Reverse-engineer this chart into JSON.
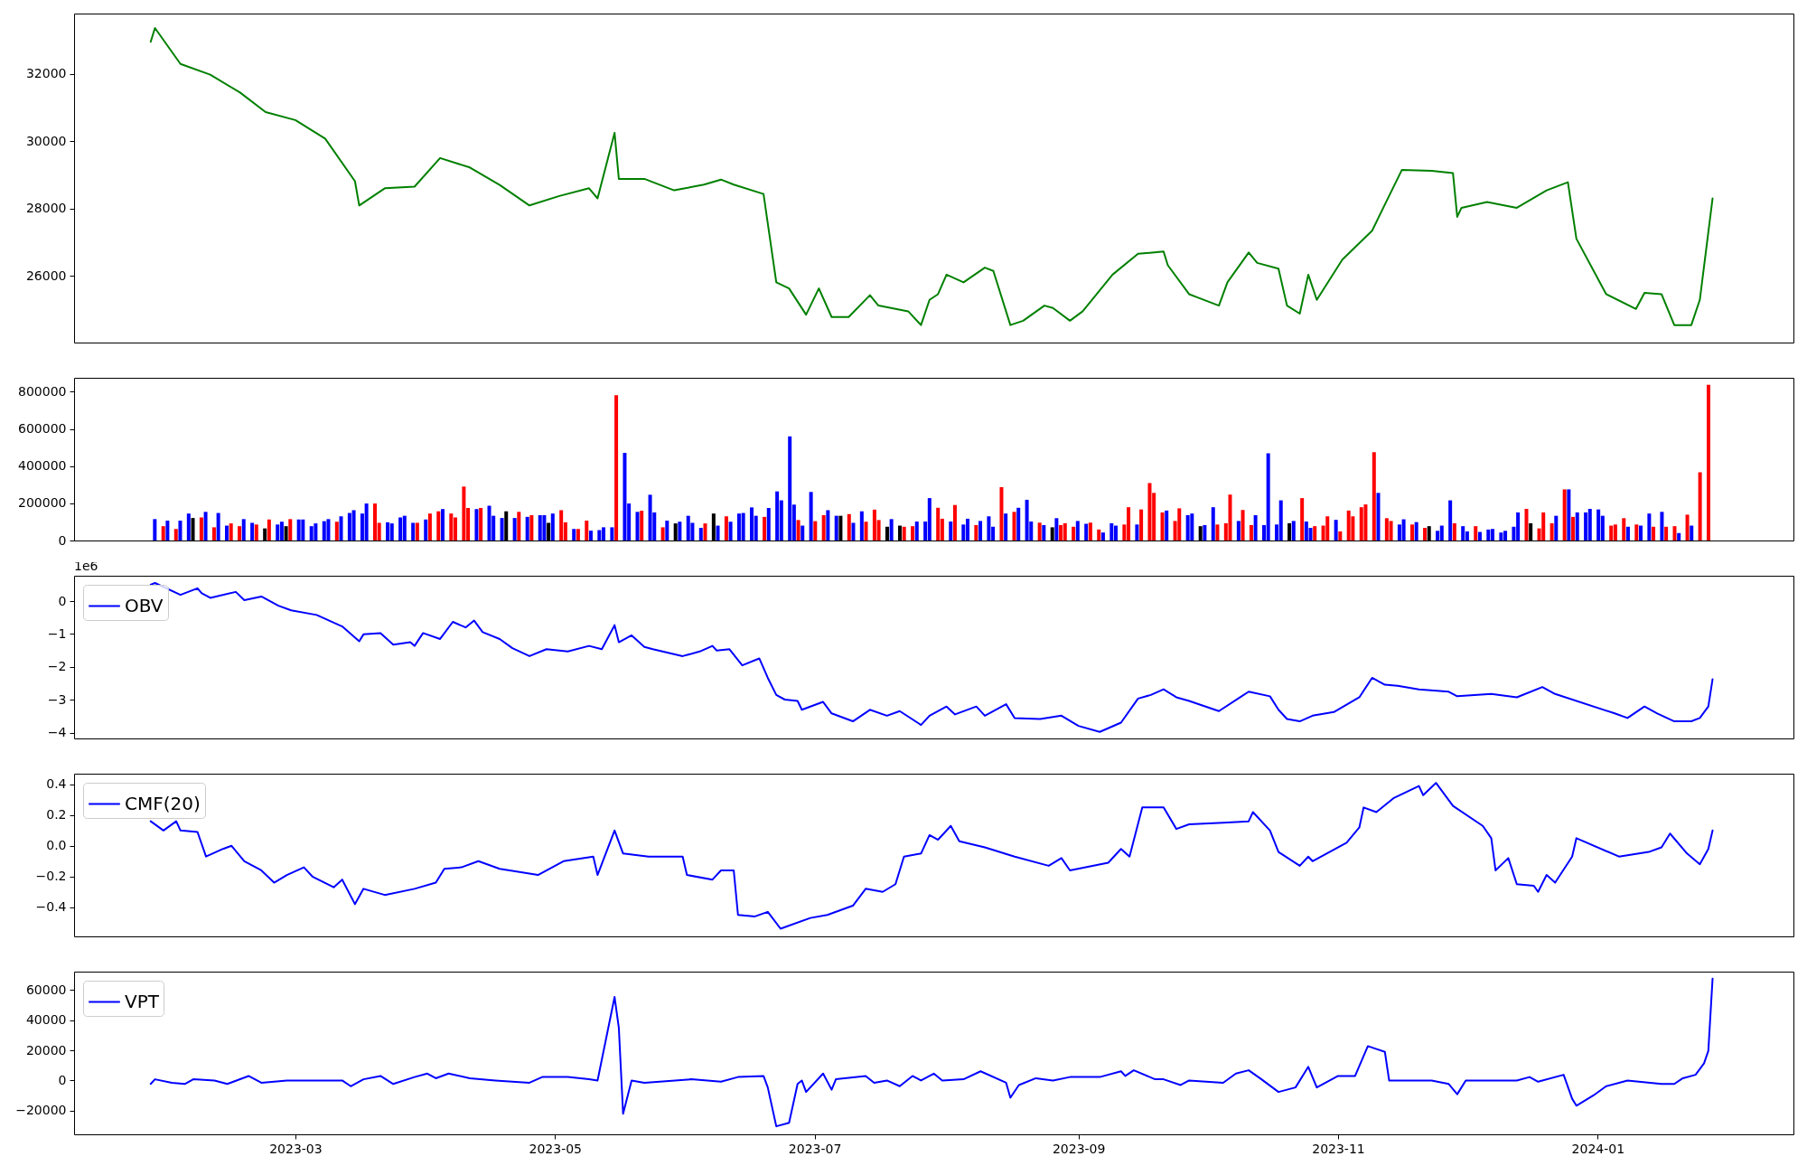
{
  "chart_data": [
    {
      "type": "line",
      "xlim": [
        "2023-01-08",
        "2024-02-16"
      ],
      "ylim": [
        24010,
        33800
      ],
      "yticks": [
        26000,
        28000,
        30000,
        32000
      ],
      "tick_labels": "y",
      "x": [
        "2023-01-26",
        "2023-01-27",
        "2023-02-02",
        "2023-02-09",
        "2023-02-16",
        "2023-02-22",
        "2023-03-01",
        "2023-03-08",
        "2023-03-15",
        "2023-03-16",
        "2023-03-22",
        "2023-03-29",
        "2023-04-04",
        "2023-04-11",
        "2023-04-18",
        "2023-04-25",
        "2023-05-02",
        "2023-05-09",
        "2023-05-11",
        "2023-05-15",
        "2023-05-16",
        "2023-05-22",
        "2023-05-29",
        "2023-06-05",
        "2023-06-09",
        "2023-06-12",
        "2023-06-19",
        "2023-06-22",
        "2023-06-25",
        "2023-06-29",
        "2023-07-02",
        "2023-07-05",
        "2023-07-09",
        "2023-07-14",
        "2023-07-16",
        "2023-07-23",
        "2023-07-26",
        "2023-07-28",
        "2023-07-30",
        "2023-08-01",
        "2023-08-05",
        "2023-08-10",
        "2023-08-12",
        "2023-08-16",
        "2023-08-19",
        "2023-08-24",
        "2023-08-26",
        "2023-08-30",
        "2023-09-02",
        "2023-09-09",
        "2023-09-15",
        "2023-09-21",
        "2023-09-22",
        "2023-09-27",
        "2023-09-29",
        "2023-10-04",
        "2023-10-06",
        "2023-10-11",
        "2023-10-13",
        "2023-10-18",
        "2023-10-20",
        "2023-10-23",
        "2023-10-25",
        "2023-10-27",
        "2023-11-02",
        "2023-11-09",
        "2023-11-16",
        "2023-11-23",
        "2023-11-28",
        "2023-11-29",
        "2023-11-30",
        "2023-12-06",
        "2023-12-13",
        "2023-12-20",
        "2023-12-25",
        "2023-12-27",
        "2024-01-03",
        "2024-01-10",
        "2024-01-12",
        "2024-01-16",
        "2024-01-19",
        "2024-01-23",
        "2024-01-25",
        "2024-01-28"
      ],
      "series": [
        {
          "color": "#008000",
          "values": [
            32960,
            33370,
            32300,
            31980,
            31450,
            30870,
            30630,
            30080,
            28810,
            28090,
            28600,
            28650,
            29500,
            29220,
            28700,
            28090,
            28370,
            28600,
            28300,
            30250,
            28880,
            28880,
            28540,
            28710,
            28860,
            28710,
            28430,
            25800,
            25620,
            24840,
            25620,
            24770,
            24770,
            25420,
            25110,
            24940,
            24530,
            25280,
            25450,
            26030,
            25800,
            26240,
            26140,
            24530,
            24660,
            25110,
            25040,
            24660,
            24940,
            26030,
            26650,
            26720,
            26310,
            25450,
            25350,
            25110,
            25800,
            26690,
            26380,
            26210,
            25110,
            24870,
            26030,
            25280,
            26480,
            27340,
            29150,
            29120,
            29050,
            27750,
            28020,
            28190,
            28020,
            28540,
            28780,
            27100,
            25450,
            25010,
            25490,
            25450,
            24530,
            24530,
            25280,
            28300
          ]
        }
      ]
    },
    {
      "type": "bar",
      "xlim": [
        "2023-01-08",
        "2024-02-16"
      ],
      "ylim": [
        0,
        875000
      ],
      "yticks": [
        0,
        200000,
        400000,
        600000,
        800000
      ],
      "tick_labels": "y",
      "x": [
        "2023-01-26",
        "2023-01-28",
        "2023-01-29",
        "2023-01-31",
        "2023-02-01",
        "2023-02-03",
        "2023-02-04",
        "2023-02-06",
        "2023-02-07",
        "2023-02-09",
        "2023-02-10",
        "2023-02-12",
        "2023-02-13",
        "2023-02-15",
        "2023-02-16",
        "2023-02-18",
        "2023-02-19",
        "2023-02-21",
        "2023-02-22",
        "2023-02-24",
        "2023-02-25",
        "2023-02-26",
        "2023-02-27",
        "2023-03-01",
        "2023-03-02",
        "2023-03-04",
        "2023-03-05",
        "2023-03-07",
        "2023-03-08",
        "2023-03-10",
        "2023-03-11",
        "2023-03-13",
        "2023-03-14",
        "2023-03-16",
        "2023-03-17",
        "2023-03-19",
        "2023-03-20",
        "2023-03-22",
        "2023-03-23",
        "2023-03-25",
        "2023-03-26",
        "2023-03-28",
        "2023-03-29",
        "2023-03-31",
        "2023-04-01",
        "2023-04-03",
        "2023-04-04",
        "2023-04-06",
        "2023-04-07",
        "2023-04-09",
        "2023-04-10",
        "2023-04-12",
        "2023-04-13",
        "2023-04-15",
        "2023-04-16",
        "2023-04-18",
        "2023-04-19",
        "2023-04-21",
        "2023-04-22",
        "2023-04-24",
        "2023-04-25",
        "2023-04-27",
        "2023-04-28",
        "2023-04-29",
        "2023-04-30",
        "2023-05-02",
        "2023-05-03",
        "2023-05-05",
        "2023-05-06",
        "2023-05-08",
        "2023-05-09",
        "2023-05-11",
        "2023-05-12",
        "2023-05-14",
        "2023-05-15",
        "2023-05-17",
        "2023-05-18",
        "2023-05-20",
        "2023-05-21",
        "2023-05-23",
        "2023-05-24",
        "2023-05-26",
        "2023-05-27",
        "2023-05-29",
        "2023-05-30",
        "2023-06-01",
        "2023-06-02",
        "2023-06-04",
        "2023-06-05",
        "2023-06-07",
        "2023-06-08",
        "2023-06-10",
        "2023-06-11",
        "2023-06-13",
        "2023-06-14",
        "2023-06-16",
        "2023-06-17",
        "2023-06-19",
        "2023-06-20",
        "2023-06-22",
        "2023-06-23",
        "2023-06-25",
        "2023-06-26",
        "2023-06-27",
        "2023-06-28",
        "2023-06-30",
        "2023-07-01",
        "2023-07-03",
        "2023-07-04",
        "2023-07-06",
        "2023-07-07",
        "2023-07-09",
        "2023-07-10",
        "2023-07-12",
        "2023-07-13",
        "2023-07-15",
        "2023-07-16",
        "2023-07-18",
        "2023-07-19",
        "2023-07-21",
        "2023-07-22",
        "2023-07-24",
        "2023-07-25",
        "2023-07-27",
        "2023-07-28",
        "2023-07-30",
        "2023-07-31",
        "2023-08-02",
        "2023-08-03",
        "2023-08-05",
        "2023-08-06",
        "2023-08-08",
        "2023-08-09",
        "2023-08-11",
        "2023-08-12",
        "2023-08-14",
        "2023-08-15",
        "2023-08-17",
        "2023-08-18",
        "2023-08-20",
        "2023-08-21",
        "2023-08-23",
        "2023-08-24",
        "2023-08-26",
        "2023-08-27",
        "2023-08-28",
        "2023-08-29",
        "2023-08-31",
        "2023-09-01",
        "2023-09-03",
        "2023-09-04",
        "2023-09-06",
        "2023-09-07",
        "2023-09-09",
        "2023-09-10",
        "2023-09-12",
        "2023-09-13",
        "2023-09-15",
        "2023-09-16",
        "2023-09-18",
        "2023-09-19",
        "2023-09-21",
        "2023-09-22",
        "2023-09-24",
        "2023-09-25",
        "2023-09-27",
        "2023-09-28",
        "2023-09-30",
        "2023-10-01",
        "2023-10-03",
        "2023-10-04",
        "2023-10-06",
        "2023-10-07",
        "2023-10-09",
        "2023-10-10",
        "2023-10-12",
        "2023-10-13",
        "2023-10-15",
        "2023-10-16",
        "2023-10-18",
        "2023-10-19",
        "2023-10-21",
        "2023-10-22",
        "2023-10-24",
        "2023-10-25",
        "2023-10-26",
        "2023-10-27",
        "2023-10-29",
        "2023-10-30",
        "2023-11-01",
        "2023-11-02",
        "2023-11-04",
        "2023-11-05",
        "2023-11-07",
        "2023-11-08",
        "2023-11-10",
        "2023-11-11",
        "2023-11-13",
        "2023-11-14",
        "2023-11-16",
        "2023-11-17",
        "2023-11-19",
        "2023-11-20",
        "2023-11-22",
        "2023-11-23",
        "2023-11-25",
        "2023-11-26",
        "2023-11-28",
        "2023-11-29",
        "2023-12-01",
        "2023-12-02",
        "2023-12-04",
        "2023-12-05",
        "2023-12-07",
        "2023-12-08",
        "2023-12-10",
        "2023-12-11",
        "2023-12-13",
        "2023-12-14",
        "2023-12-16",
        "2023-12-17",
        "2023-12-19",
        "2023-12-20",
        "2023-12-22",
        "2023-12-23",
        "2023-12-25",
        "2023-12-26",
        "2023-12-27",
        "2023-12-28",
        "2023-12-30",
        "2023-12-31",
        "2024-01-02",
        "2024-01-03",
        "2024-01-05",
        "2024-01-06",
        "2024-01-08",
        "2024-01-09",
        "2024-01-11",
        "2024-01-12",
        "2024-01-14",
        "2024-01-15",
        "2024-01-17",
        "2024-01-18",
        "2024-01-20",
        "2024-01-21",
        "2024-01-23",
        "2024-01-24",
        "2024-01-26",
        "2024-01-28"
      ],
      "values": [
        115000,
        77000,
        107000,
        62000,
        107000,
        145000,
        121000,
        124000,
        154000,
        71000,
        148000,
        80000,
        92000,
        77000,
        115000,
        95000,
        86000,
        65000,
        113000,
        86000,
        101000,
        77000,
        115000,
        113000,
        113000,
        77000,
        92000,
        104000,
        115000,
        101000,
        130000,
        148000,
        163000,
        145000,
        199000,
        199000,
        95000,
        98000,
        92000,
        124000,
        133000,
        95000,
        95000,
        113000,
        145000,
        157000,
        169000,
        145000,
        124000,
        290000,
        175000,
        169000,
        175000,
        187000,
        133000,
        121000,
        157000,
        121000,
        154000,
        127000,
        136000,
        136000,
        136000,
        95000,
        145000,
        163000,
        98000,
        62000,
        62000,
        107000,
        53000,
        56000,
        71000,
        71000,
        782000,
        471000,
        199000,
        154000,
        160000,
        246000,
        151000,
        71000,
        107000,
        92000,
        101000,
        133000,
        95000,
        68000,
        92000,
        145000,
        80000,
        130000,
        101000,
        145000,
        148000,
        178000,
        133000,
        127000,
        175000,
        264000,
        216000,
        560000,
        193000,
        110000,
        80000,
        261000,
        104000,
        136000,
        163000,
        133000,
        133000,
        142000,
        95000,
        157000,
        101000,
        166000,
        110000,
        74000,
        115000,
        80000,
        74000,
        77000,
        102000,
        102000,
        228000,
        176000,
        117000,
        102000,
        191000,
        86000,
        117000,
        83000,
        105000,
        130000,
        74000,
        287000,
        145000,
        154000,
        176000,
        219000,
        102000,
        96000,
        83000,
        71000,
        120000,
        83000,
        93000,
        74000,
        105000,
        90000,
        96000,
        59000,
        43000,
        93000,
        80000,
        86000,
        179000,
        86000,
        167000,
        309000,
        256000,
        151000,
        161000,
        105000,
        173000,
        136000,
        145000,
        77000,
        83000,
        179000,
        86000,
        93000,
        247000,
        105000,
        164000,
        83000,
        136000,
        83000,
        469000,
        86000,
        216000,
        93000,
        105000,
        228000,
        102000,
        68000,
        77000,
        80000,
        130000,
        111000,
        49000,
        161000,
        130000,
        179000,
        194000,
        475000,
        256000,
        120000,
        105000,
        86000,
        114000,
        86000,
        99000,
        68000,
        77000,
        52000,
        80000,
        216000,
        93000,
        77000,
        49000,
        77000,
        46000,
        59000,
        62000,
        43000,
        52000,
        74000,
        151000,
        170000,
        93000,
        65000,
        151000,
        93000,
        133000,
        275000,
        275000,
        127000,
        151000,
        151000,
        170000,
        167000,
        133000,
        80000,
        86000,
        120000,
        74000,
        86000,
        80000,
        145000,
        74000,
        154000,
        74000,
        77000,
        40000,
        139000,
        80000,
        367000,
        837000
      ],
      "colors": [
        "#0000ff",
        "#ff0000",
        "#0000ff",
        "#ff0000",
        "#0000ff",
        "#0000ff",
        "#000000",
        "#ff0000",
        "#0000ff",
        "#ff0000",
        "#0000ff",
        "#0000ff",
        "#ff0000",
        "#ff0000",
        "#0000ff",
        "#0000ff",
        "#ff0000",
        "#000000",
        "#ff0000",
        "#0000ff",
        "#0000ff",
        "#000000",
        "#ff0000",
        "#0000ff",
        "#0000ff",
        "#0000ff",
        "#0000ff",
        "#0000ff",
        "#0000ff",
        "#ff0000",
        "#0000ff",
        "#0000ff",
        "#0000ff",
        "#0000ff",
        "#0000ff",
        "#ff0000",
        "#ff0000",
        "#0000ff",
        "#0000ff",
        "#0000ff",
        "#0000ff",
        "#0000ff",
        "#ff0000",
        "#0000ff",
        "#ff0000",
        "#ff0000",
        "#0000ff",
        "#ff0000",
        "#ff0000",
        "#ff0000",
        "#ff0000",
        "#0000ff",
        "#ff0000",
        "#0000ff",
        "#0000ff",
        "#0000ff",
        "#000000",
        "#0000ff",
        "#ff0000",
        "#0000ff",
        "#ff0000",
        "#0000ff",
        "#0000ff",
        "#000000",
        "#0000ff",
        "#ff0000",
        "#ff0000",
        "#0000ff",
        "#ff0000",
        "#ff0000",
        "#0000ff",
        "#0000ff",
        "#0000ff",
        "#0000ff",
        "#ff0000",
        "#0000ff",
        "#0000ff",
        "#0000ff",
        "#ff0000",
        "#0000ff",
        "#0000ff",
        "#ff0000",
        "#0000ff",
        "#000000",
        "#0000ff",
        "#0000ff",
        "#0000ff",
        "#0000ff",
        "#ff0000",
        "#000000",
        "#0000ff",
        "#ff0000",
        "#0000ff",
        "#0000ff",
        "#0000ff",
        "#0000ff",
        "#0000ff",
        "#ff0000",
        "#0000ff",
        "#0000ff",
        "#0000ff",
        "#0000ff",
        "#0000ff",
        "#ff0000",
        "#0000ff",
        "#0000ff",
        "#ff0000",
        "#ff0000",
        "#0000ff",
        "#0000ff",
        "#000000",
        "#ff0000",
        "#0000ff",
        "#0000ff",
        "#ff0000",
        "#ff0000",
        "#ff0000",
        "#000000",
        "#0000ff",
        "#000000",
        "#ff0000",
        "#ff0000",
        "#0000ff",
        "#0000ff",
        "#0000ff",
        "#ff0000",
        "#ff0000",
        "#0000ff",
        "#ff0000",
        "#0000ff",
        "#0000ff",
        "#ff0000",
        "#0000ff",
        "#0000ff",
        "#0000ff",
        "#ff0000",
        "#0000ff",
        "#ff0000",
        "#0000ff",
        "#0000ff",
        "#0000ff",
        "#ff0000",
        "#0000ff",
        "#000000",
        "#0000ff",
        "#ff0000",
        "#ff0000",
        "#ff0000",
        "#0000ff",
        "#0000ff",
        "#ff0000",
        "#ff0000",
        "#0000ff",
        "#0000ff",
        "#0000ff",
        "#ff0000",
        "#ff0000",
        "#0000ff",
        "#ff0000",
        "#ff0000",
        "#ff0000",
        "#ff0000",
        "#0000ff",
        "#ff0000",
        "#ff0000",
        "#0000ff",
        "#0000ff",
        "#000000",
        "#0000ff",
        "#0000ff",
        "#ff0000",
        "#ff0000",
        "#ff0000",
        "#0000ff",
        "#ff0000",
        "#ff0000",
        "#0000ff",
        "#0000ff",
        "#0000ff",
        "#0000ff",
        "#0000ff",
        "#000000",
        "#0000ff",
        "#ff0000",
        "#0000ff",
        "#0000ff",
        "#ff0000",
        "#ff0000",
        "#ff0000",
        "#0000ff",
        "#ff0000",
        "#ff0000",
        "#ff0000",
        "#ff0000",
        "#ff0000",
        "#ff0000",
        "#0000ff",
        "#ff0000",
        "#ff0000",
        "#0000ff",
        "#0000ff",
        "#ff0000",
        "#0000ff",
        "#ff0000",
        "#000000",
        "#0000ff",
        "#0000ff",
        "#0000ff",
        "#ff0000",
        "#0000ff",
        "#0000ff",
        "#ff0000",
        "#0000ff",
        "#0000ff",
        "#0000ff",
        "#0000ff",
        "#0000ff",
        "#0000ff",
        "#0000ff",
        "#ff0000",
        "#000000",
        "#ff0000",
        "#ff0000",
        "#ff0000",
        "#0000ff",
        "#ff0000",
        "#0000ff",
        "#ff0000",
        "#0000ff",
        "#0000ff",
        "#0000ff",
        "#0000ff",
        "#0000ff",
        "#ff0000",
        "#ff0000",
        "#ff0000",
        "#0000ff",
        "#ff0000",
        "#0000ff",
        "#0000ff",
        "#ff0000",
        "#0000ff",
        "#ff0000",
        "#ff0000",
        "#0000ff",
        "#ff0000",
        "#0000ff",
        "#ff0000",
        "#ff0000"
      ]
    },
    {
      "type": "line",
      "xlim": [
        "2023-01-08",
        "2024-02-16"
      ],
      "ylim": [
        -4.17,
        0.77
      ],
      "yticks": [
        {
          "value": -4,
          "label": "−4"
        },
        {
          "value": -3,
          "label": "−3"
        },
        {
          "value": -2,
          "label": "−2"
        },
        {
          "value": -1,
          "label": "−1"
        },
        0
      ],
      "tick_labels": "y",
      "legend": "top left",
      "annotations": [
        "1e6"
      ],
      "x": [
        "2023-01-26",
        "2023-01-27",
        "2023-02-02",
        "2023-02-06",
        "2023-02-07",
        "2023-02-09",
        "2023-02-15",
        "2023-02-17",
        "2023-02-21",
        "2023-02-25",
        "2023-02-28",
        "2023-03-06",
        "2023-03-12",
        "2023-03-16",
        "2023-03-17",
        "2023-03-21",
        "2023-03-24",
        "2023-03-28",
        "2023-03-29",
        "2023-03-31",
        "2023-04-04",
        "2023-04-07",
        "2023-04-10",
        "2023-04-12",
        "2023-04-14",
        "2023-04-18",
        "2023-04-21",
        "2023-04-25",
        "2023-04-29",
        "2023-05-04",
        "2023-05-09",
        "2023-05-12",
        "2023-05-15",
        "2023-05-16",
        "2023-05-19",
        "2023-05-22",
        "2023-05-24",
        "2023-05-31",
        "2023-06-04",
        "2023-06-07",
        "2023-06-08",
        "2023-06-11",
        "2023-06-14",
        "2023-06-18",
        "2023-06-20",
        "2023-06-22",
        "2023-06-24",
        "2023-06-27",
        "2023-06-28",
        "2023-07-03",
        "2023-07-05",
        "2023-07-10",
        "2023-07-14",
        "2023-07-18",
        "2023-07-21",
        "2023-07-26",
        "2023-07-28",
        "2023-08-01",
        "2023-08-03",
        "2023-08-08",
        "2023-08-10",
        "2023-08-15",
        "2023-08-17",
        "2023-08-23",
        "2023-08-28",
        "2023-09-01",
        "2023-09-06",
        "2023-09-11",
        "2023-09-15",
        "2023-09-18",
        "2023-09-21",
        "2023-09-24",
        "2023-09-27",
        "2023-10-04",
        "2023-10-09",
        "2023-10-11",
        "2023-10-16",
        "2023-10-18",
        "2023-10-20",
        "2023-10-23",
        "2023-10-26",
        "2023-10-31",
        "2023-11-06",
        "2023-11-09",
        "2023-11-12",
        "2023-11-15",
        "2023-11-20",
        "2023-11-27",
        "2023-11-29",
        "2023-12-07",
        "2023-12-13",
        "2023-12-19",
        "2023-12-22",
        "2024-01-05",
        "2024-01-08",
        "2024-01-12",
        "2024-01-15",
        "2024-01-19",
        "2024-01-23",
        "2024-01-25",
        "2024-01-27",
        "2024-01-28"
      ],
      "series": [
        {
          "name": "OBV",
          "color": "#0000ff",
          "values": [
            0.5,
            0.55,
            0.19,
            0.39,
            0.24,
            0.1,
            0.28,
            0.03,
            0.14,
            -0.14,
            -0.28,
            -0.42,
            -0.77,
            -1.22,
            -1.01,
            -0.97,
            -1.32,
            -1.25,
            -1.36,
            -0.97,
            -1.15,
            -0.63,
            -0.8,
            -0.59,
            -0.94,
            -1.15,
            -1.43,
            -1.67,
            -1.46,
            -1.53,
            -1.36,
            -1.46,
            -0.73,
            -1.25,
            -1.04,
            -1.39,
            -1.46,
            -1.67,
            -1.53,
            -1.36,
            -1.5,
            -1.46,
            -1.95,
            -1.74,
            -2.33,
            -2.85,
            -2.99,
            -3.03,
            -3.3,
            -3.06,
            -3.41,
            -3.65,
            -3.3,
            -3.48,
            -3.34,
            -3.76,
            -3.48,
            -3.2,
            -3.44,
            -3.2,
            -3.48,
            -3.13,
            -3.55,
            -3.58,
            -3.48,
            -3.79,
            -3.97,
            -3.69,
            -2.96,
            -2.85,
            -2.68,
            -2.92,
            -3.03,
            -3.34,
            -2.92,
            -2.75,
            -2.89,
            -3.3,
            -3.58,
            -3.65,
            -3.48,
            -3.37,
            -2.92,
            -2.33,
            -2.54,
            -2.57,
            -2.68,
            -2.75,
            -2.89,
            -2.82,
            -2.92,
            -2.61,
            -2.82,
            -3.41,
            -3.55,
            -3.2,
            -3.41,
            -3.65,
            -3.65,
            -3.55,
            -3.2,
            -2.37
          ]
        }
      ]
    },
    {
      "type": "line",
      "xlim": [
        "2023-01-08",
        "2024-02-16"
      ],
      "ylim": [
        -0.59,
        0.47
      ],
      "yticks": [
        {
          "value": -0.4,
          "label": "−0.4"
        },
        {
          "value": -0.2,
          "label": "−0.2"
        },
        {
          "value": 0,
          "label": "0.0"
        },
        0.2,
        0.4
      ],
      "tick_labels": "y",
      "legend": "top left",
      "x": [
        "2023-01-26",
        "2023-01-29",
        "2023-02-01",
        "2023-02-02",
        "2023-02-06",
        "2023-02-08",
        "2023-02-12",
        "2023-02-14",
        "2023-02-17",
        "2023-02-21",
        "2023-02-24",
        "2023-02-27",
        "2023-03-03",
        "2023-03-05",
        "2023-03-10",
        "2023-03-12",
        "2023-03-15",
        "2023-03-17",
        "2023-03-22",
        "2023-03-29",
        "2023-04-03",
        "2023-04-05",
        "2023-04-09",
        "2023-04-13",
        "2023-04-18",
        "2023-04-27",
        "2023-05-03",
        "2023-05-10",
        "2023-05-11",
        "2023-05-15",
        "2023-05-17",
        "2023-05-23",
        "2023-05-31",
        "2023-06-01",
        "2023-06-07",
        "2023-06-09",
        "2023-06-12",
        "2023-06-13",
        "2023-06-17",
        "2023-06-20",
        "2023-06-23",
        "2023-06-30",
        "2023-07-04",
        "2023-07-10",
        "2023-07-13",
        "2023-07-17",
        "2023-07-20",
        "2023-07-22",
        "2023-07-26",
        "2023-07-28",
        "2023-07-30",
        "2023-08-02",
        "2023-08-04",
        "2023-08-10",
        "2023-08-17",
        "2023-08-25",
        "2023-08-28",
        "2023-08-30",
        "2023-09-08",
        "2023-09-11",
        "2023-09-13",
        "2023-09-16",
        "2023-09-21",
        "2023-09-24",
        "2023-09-27",
        "2023-10-05",
        "2023-10-11",
        "2023-10-12",
        "2023-10-16",
        "2023-10-18",
        "2023-10-23",
        "2023-10-25",
        "2023-10-26",
        "2023-11-03",
        "2023-11-06",
        "2023-11-07",
        "2023-11-10",
        "2023-11-14",
        "2023-11-20",
        "2023-11-21",
        "2023-11-24",
        "2023-11-28",
        "2023-12-05",
        "2023-12-07",
        "2023-12-08",
        "2023-12-11",
        "2023-12-13",
        "2023-12-17",
        "2023-12-18",
        "2023-12-20",
        "2023-12-22",
        "2023-12-26",
        "2023-12-27",
        "2024-01-06",
        "2024-01-13",
        "2024-01-16",
        "2024-01-18",
        "2024-01-22",
        "2024-01-25",
        "2024-01-27",
        "2024-01-28"
      ],
      "series": [
        {
          "name": "CMF(20)",
          "color": "#0000ff",
          "values": [
            0.16,
            0.1,
            0.16,
            0.1,
            0.09,
            -0.07,
            -0.02,
            0.0,
            -0.1,
            -0.16,
            -0.24,
            -0.19,
            -0.14,
            -0.2,
            -0.27,
            -0.22,
            -0.38,
            -0.28,
            -0.32,
            -0.28,
            -0.24,
            -0.15,
            -0.14,
            -0.1,
            -0.15,
            -0.19,
            -0.1,
            -0.07,
            -0.19,
            0.1,
            -0.05,
            -0.07,
            -0.07,
            -0.19,
            -0.22,
            -0.16,
            -0.16,
            -0.45,
            -0.46,
            -0.43,
            -0.54,
            -0.47,
            -0.45,
            -0.39,
            -0.28,
            -0.3,
            -0.25,
            -0.07,
            -0.05,
            0.07,
            0.04,
            0.13,
            0.03,
            -0.01,
            -0.07,
            -0.13,
            -0.08,
            -0.16,
            -0.11,
            -0.02,
            -0.07,
            0.25,
            0.25,
            0.11,
            0.14,
            0.15,
            0.16,
            0.22,
            0.1,
            -0.04,
            -0.13,
            -0.07,
            -0.1,
            0.02,
            0.12,
            0.25,
            0.22,
            0.31,
            0.39,
            0.33,
            0.41,
            0.26,
            0.13,
            0.05,
            -0.16,
            -0.08,
            -0.25,
            -0.26,
            -0.3,
            -0.19,
            -0.24,
            -0.07,
            0.05,
            -0.07,
            -0.04,
            -0.01,
            0.08,
            -0.05,
            -0.12,
            -0.02,
            0.1
          ]
        }
      ]
    },
    {
      "type": "line",
      "xlim": [
        "2023-01-08",
        "2024-02-16"
      ],
      "ylim": [
        -35700,
        72200
      ],
      "yticks": [
        {
          "value": -20000,
          "label": "−20000"
        },
        0,
        20000,
        40000,
        60000
      ],
      "xticks": [
        "2023-03",
        "2023-05",
        "2023-07",
        "2023-09",
        "2023-11",
        "2024-01"
      ],
      "legend": "top left",
      "x": [
        "2023-01-26",
        "2023-01-27",
        "2023-01-31",
        "2023-02-03",
        "2023-02-05",
        "2023-02-10",
        "2023-02-13",
        "2023-02-18",
        "2023-02-21",
        "2023-02-27",
        "2023-03-12",
        "2023-03-14",
        "2023-03-17",
        "2023-03-21",
        "2023-03-24",
        "2023-03-29",
        "2023-04-01",
        "2023-04-03",
        "2023-04-06",
        "2023-04-11",
        "2023-04-17",
        "2023-04-25",
        "2023-04-28",
        "2023-05-04",
        "2023-05-09",
        "2023-05-11",
        "2023-05-15",
        "2023-05-16",
        "2023-05-17",
        "2023-05-19",
        "2023-05-22",
        "2023-06-02",
        "2023-06-09",
        "2023-06-13",
        "2023-06-19",
        "2023-06-20",
        "2023-06-22",
        "2023-06-25",
        "2023-06-27",
        "2023-06-28",
        "2023-06-29",
        "2023-07-03",
        "2023-07-05",
        "2023-07-06",
        "2023-07-13",
        "2023-07-15",
        "2023-07-18",
        "2023-07-21",
        "2023-07-24",
        "2023-07-26",
        "2023-07-29",
        "2023-07-31",
        "2023-08-05",
        "2023-08-09",
        "2023-08-15",
        "2023-08-16",
        "2023-08-18",
        "2023-08-22",
        "2023-08-26",
        "2023-08-30",
        "2023-09-06",
        "2023-09-11",
        "2023-09-12",
        "2023-09-14",
        "2023-09-19",
        "2023-09-21",
        "2023-09-25",
        "2023-09-27",
        "2023-10-05",
        "2023-10-08",
        "2023-10-11",
        "2023-10-14",
        "2023-10-18",
        "2023-10-22",
        "2023-10-25",
        "2023-10-27",
        "2023-11-01",
        "2023-11-05",
        "2023-11-08",
        "2023-11-12",
        "2023-11-13",
        "2023-11-23",
        "2023-11-27",
        "2023-11-29",
        "2023-12-01",
        "2023-12-13",
        "2023-12-16",
        "2023-12-18",
        "2023-12-24",
        "2023-12-26",
        "2023-12-27",
        "2023-12-31",
        "2024-01-03",
        "2024-01-08",
        "2024-01-16",
        "2024-01-19",
        "2024-01-21",
        "2024-01-24",
        "2024-01-26",
        "2024-01-27",
        "2024-01-28"
      ],
      "series": [
        {
          "name": "VPT",
          "color": "#0000ff",
          "values": [
            -2300,
            800,
            -1500,
            -2300,
            800,
            0,
            -2300,
            3000,
            -1500,
            0,
            0,
            -3800,
            800,
            3000,
            -2300,
            2300,
            4600,
            1500,
            4600,
            1500,
            0,
            -1500,
            2300,
            2300,
            800,
            0,
            55400,
            34900,
            -22000,
            0,
            -1500,
            800,
            -800,
            2300,
            3000,
            -4600,
            -30400,
            -28100,
            -2300,
            0,
            -7600,
            4600,
            -6100,
            800,
            3000,
            -1500,
            0,
            -3800,
            3000,
            0,
            4600,
            0,
            800,
            6100,
            -1500,
            -11400,
            -3000,
            1500,
            0,
            2300,
            2300,
            6100,
            3000,
            6800,
            800,
            800,
            -3000,
            0,
            -1500,
            4600,
            6800,
            800,
            -7600,
            -4600,
            9100,
            -4600,
            3000,
            3000,
            22800,
            19000,
            0,
            0,
            -2300,
            -9100,
            0,
            0,
            2300,
            -800,
            3800,
            -12100,
            -16700,
            -9900,
            -3800,
            0,
            -2300,
            -2300,
            1500,
            3800,
            11400,
            19700,
            67600
          ]
        }
      ]
    }
  ]
}
